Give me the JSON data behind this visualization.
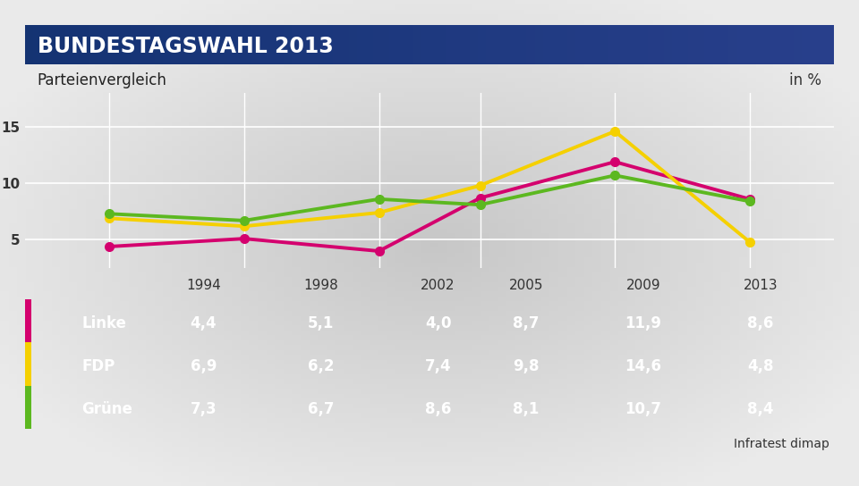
{
  "title": "BUNDESTAGSWAHL 2013",
  "subtitle": "Parteienvergleich",
  "subtitle_right": "in %",
  "years": [
    1994,
    1998,
    2002,
    2005,
    2009,
    2013
  ],
  "series": [
    {
      "name": "Linke",
      "values": [
        4.4,
        5.1,
        4.0,
        8.7,
        11.9,
        8.6
      ],
      "color": "#d4006e",
      "marker": "o"
    },
    {
      "name": "FDP",
      "values": [
        6.9,
        6.2,
        7.4,
        9.8,
        14.6,
        4.8
      ],
      "color": "#f5d000",
      "marker": "o"
    },
    {
      "name": "Grüne",
      "values": [
        7.3,
        6.7,
        8.6,
        8.1,
        10.7,
        8.4
      ],
      "color": "#5cb820",
      "marker": "o"
    }
  ],
  "yticks": [
    5,
    10,
    15
  ],
  "ylim": [
    2.5,
    18
  ],
  "header_bg": "#1a3a78",
  "header_text_color": "#ffffff",
  "subtitle_bg": "#ffffff",
  "table_row_bg": "#4a7ab5",
  "table_header_bg": "#f5f5f5",
  "source": "Infratest dimap",
  "bg_color": "#c8c8c8"
}
